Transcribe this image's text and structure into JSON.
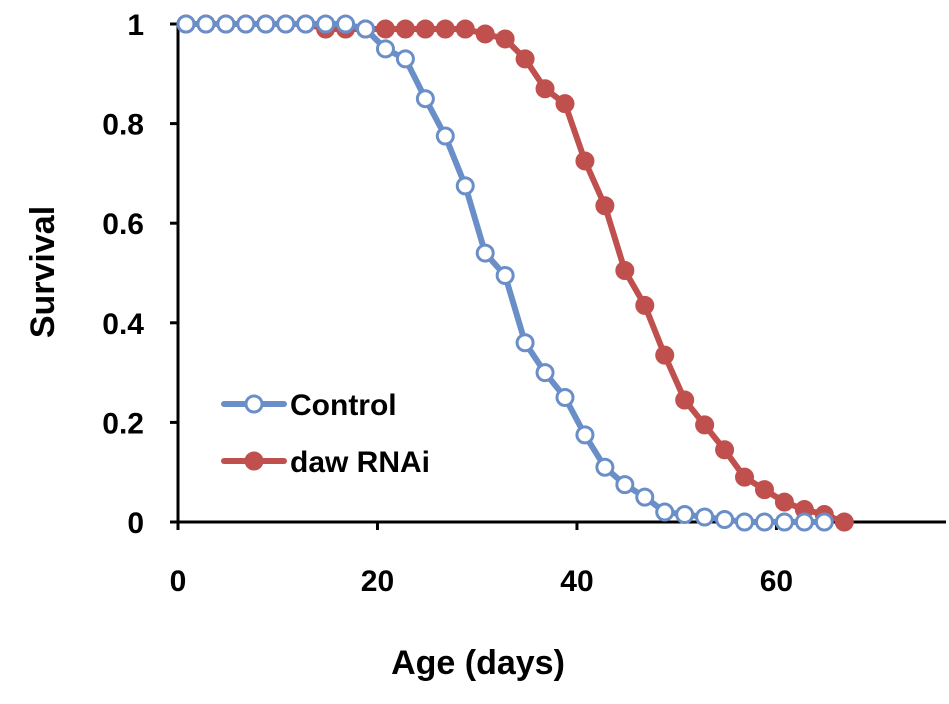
{
  "chart_data": {
    "type": "line",
    "xlabel": "Age (days)",
    "ylabel": "Survival",
    "xlim": [
      0,
      77
    ],
    "ylim": [
      0,
      1
    ],
    "xticks": [
      0,
      20,
      40,
      60
    ],
    "xtick_labels": [
      "0",
      "20",
      "40",
      "60"
    ],
    "yticks": [
      0,
      0.2,
      0.4,
      0.6,
      0.8,
      1
    ],
    "ytick_labels": [
      "0",
      "0.2",
      "0.4",
      "0.6",
      "0.8",
      "1"
    ],
    "grid": false,
    "legend_position": "lower-left",
    "series": [
      {
        "name": "Control",
        "color": "#6a8fc8",
        "marker": "open-circle",
        "x": [
          0.8,
          2.8,
          4.8,
          6.8,
          8.8,
          10.8,
          12.8,
          14.8,
          16.8,
          18.8,
          20.8,
          22.8,
          24.8,
          26.8,
          28.8,
          30.8,
          32.8,
          34.8,
          36.8,
          38.8,
          40.8,
          42.8,
          44.8,
          46.8,
          48.8,
          50.8,
          52.8,
          54.8,
          56.8,
          58.8,
          60.8,
          62.8,
          64.8
        ],
        "y": [
          1.0,
          1.0,
          1.0,
          1.0,
          1.0,
          1.0,
          1.0,
          1.0,
          1.0,
          0.99,
          0.95,
          0.93,
          0.85,
          0.775,
          0.675,
          0.54,
          0.495,
          0.36,
          0.3,
          0.25,
          0.175,
          0.11,
          0.075,
          0.05,
          0.02,
          0.015,
          0.01,
          0.005,
          0.0,
          0.0,
          0.0,
          0.0,
          0.0
        ]
      },
      {
        "name": "daw RNAi",
        "color": "#c0504d",
        "marker": "filled-circle",
        "x": [
          0.8,
          2.8,
          4.8,
          6.8,
          8.8,
          10.8,
          12.8,
          14.8,
          16.8,
          18.8,
          20.8,
          22.8,
          24.8,
          26.8,
          28.8,
          30.8,
          32.8,
          34.8,
          36.8,
          38.8,
          40.8,
          42.8,
          44.8,
          46.8,
          48.8,
          50.8,
          52.8,
          54.8,
          56.8,
          58.8,
          60.8,
          62.8,
          64.8,
          66.8
        ],
        "y": [
          1.0,
          1.0,
          1.0,
          1.0,
          1.0,
          1.0,
          1.0,
          0.99,
          0.99,
          0.99,
          0.99,
          0.99,
          0.99,
          0.99,
          0.99,
          0.98,
          0.97,
          0.93,
          0.87,
          0.84,
          0.725,
          0.635,
          0.505,
          0.435,
          0.335,
          0.245,
          0.195,
          0.145,
          0.09,
          0.065,
          0.04,
          0.025,
          0.015,
          0.0
        ]
      }
    ]
  }
}
